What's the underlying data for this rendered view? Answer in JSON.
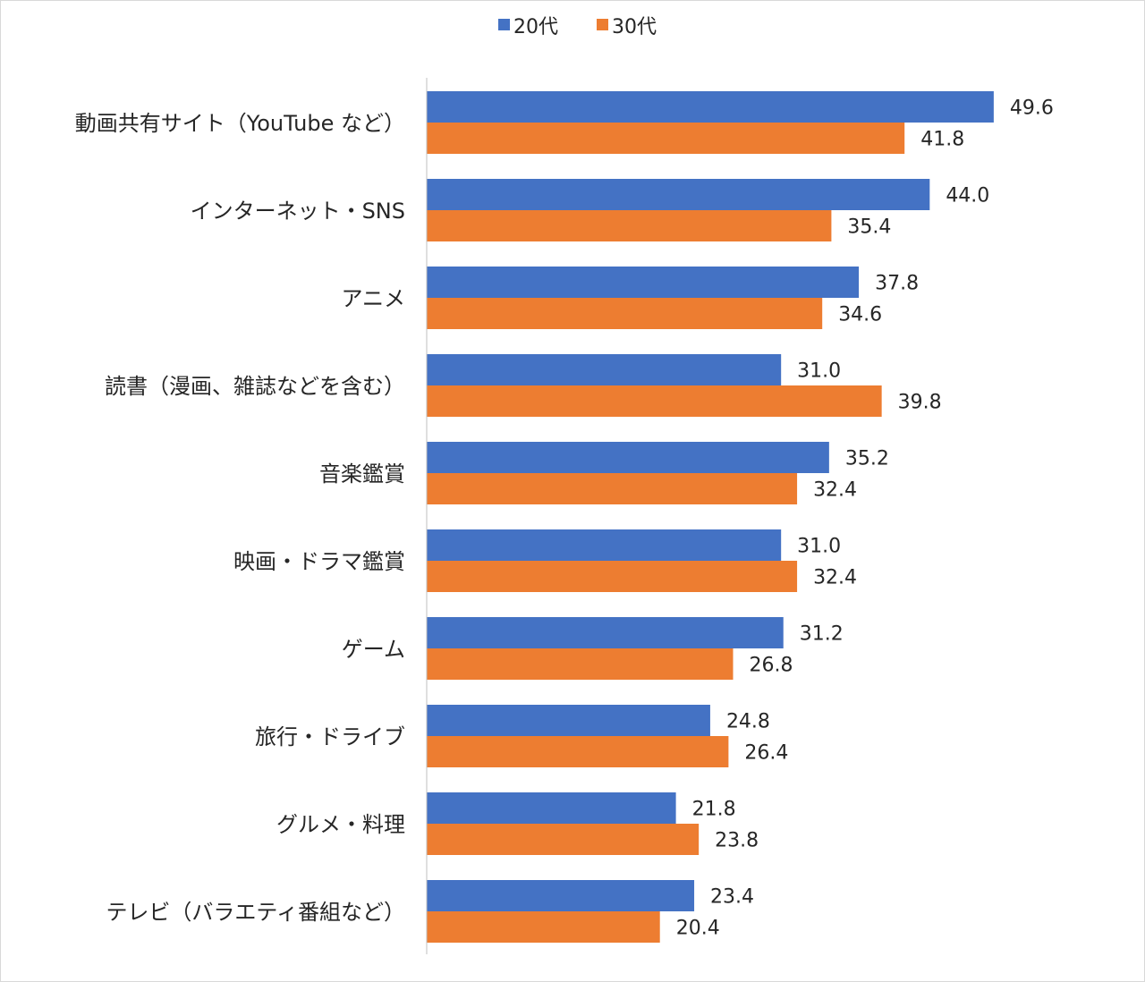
{
  "chart_data": {
    "type": "bar",
    "orientation": "horizontal",
    "categories": [
      "動画共有サイト（YouTube など）",
      "インターネット・SNS",
      "アニメ",
      "読書（漫画、雑誌などを含む）",
      "音楽鑑賞",
      "映画・ドラマ鑑賞",
      "ゲーム",
      "旅行・ドライブ",
      "グルメ・料理",
      "テレビ（バラエティ番組など）"
    ],
    "series": [
      {
        "name": "20代",
        "color": "#4472c4",
        "values": [
          49.6,
          44.0,
          37.8,
          31.0,
          35.2,
          31.0,
          31.2,
          24.8,
          21.8,
          23.4
        ],
        "labels": [
          "49.6",
          "44.0",
          "37.8",
          "31.0",
          "35.2",
          "31.0",
          "31.2",
          "24.8",
          "21.8",
          "23.4"
        ]
      },
      {
        "name": "30代",
        "color": "#ed7d31",
        "values": [
          41.8,
          35.4,
          34.6,
          39.8,
          32.4,
          32.4,
          26.8,
          26.4,
          23.8,
          20.4
        ],
        "labels": [
          "41.8",
          "35.4",
          "34.6",
          "39.8",
          "32.4",
          "32.4",
          "26.8",
          "26.4",
          "23.8",
          "20.4"
        ]
      }
    ],
    "xlim": [
      0,
      55
    ],
    "grid": false,
    "legend_position": "top"
  }
}
